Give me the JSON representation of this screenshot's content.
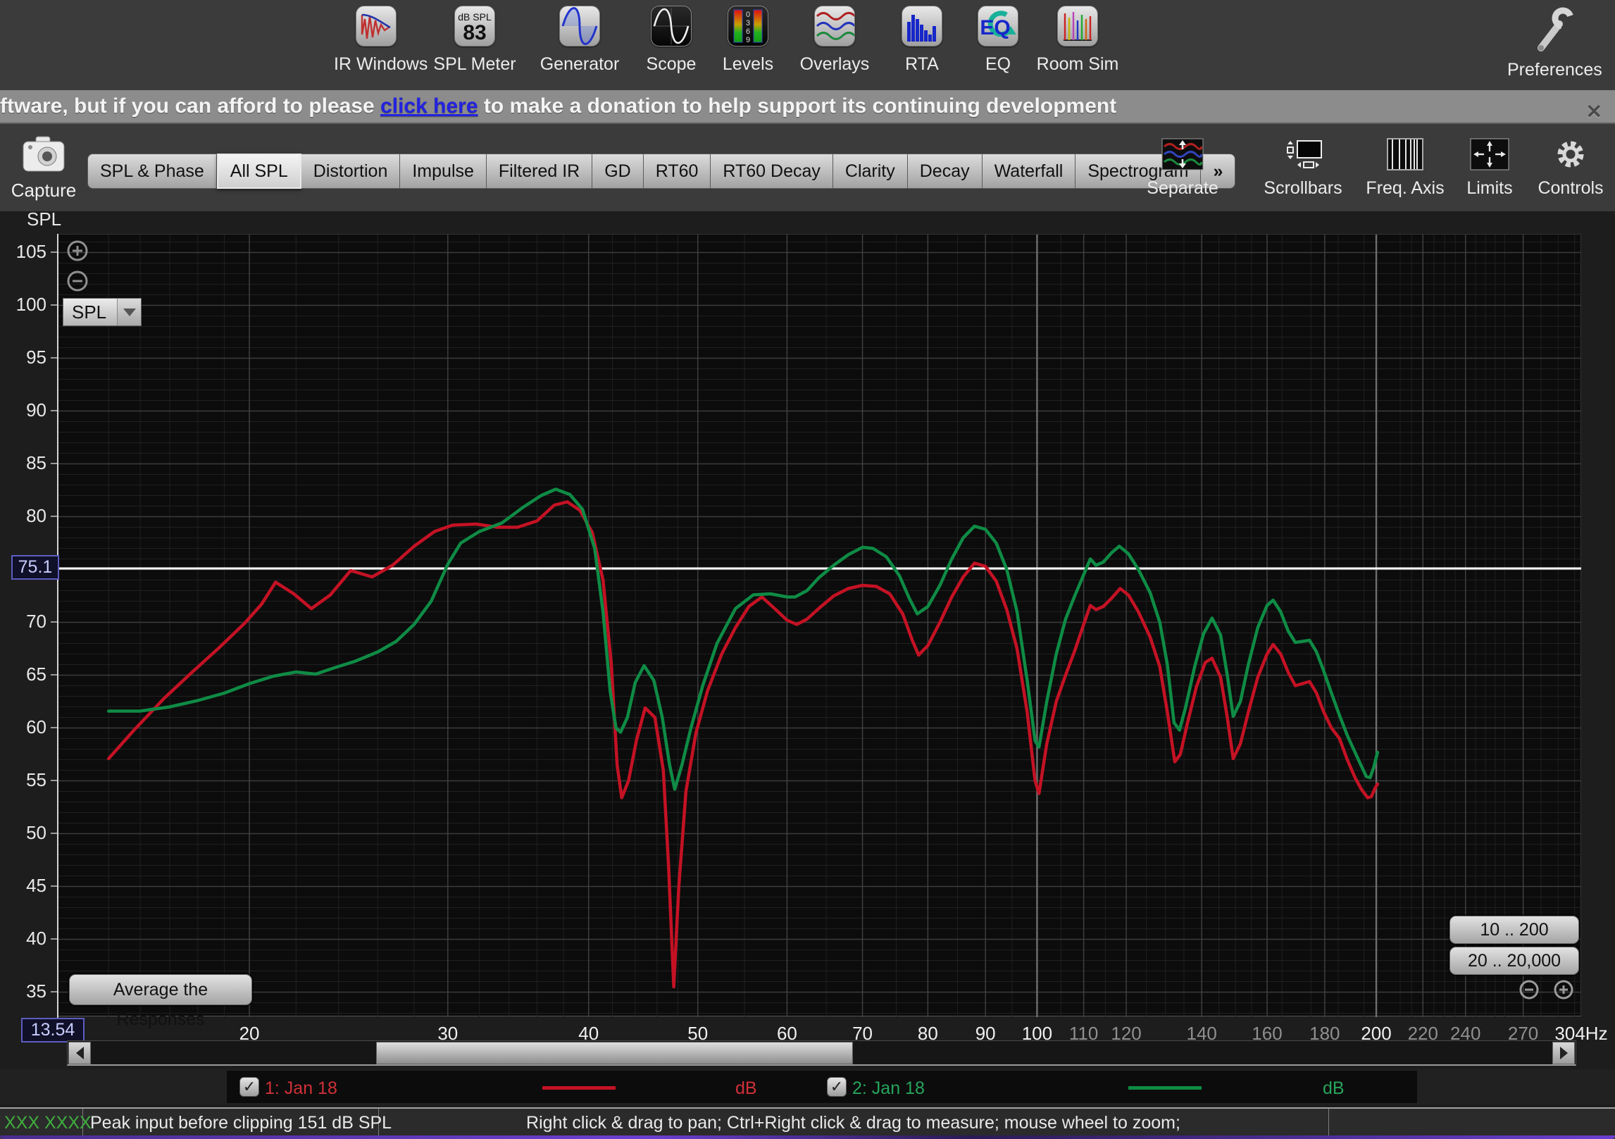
{
  "toolbar": {
    "items": [
      {
        "label": "IR Windows",
        "icon": "ir-windows"
      },
      {
        "label": "SPL Meter",
        "icon": "spl-meter",
        "badge_top": "dB SPL",
        "badge_value": "83"
      },
      {
        "label": "Generator",
        "icon": "generator"
      },
      {
        "label": "Scope",
        "icon": "scope"
      },
      {
        "label": "Levels",
        "icon": "levels",
        "scale_digits": [
          "0",
          "3",
          "6",
          "9"
        ]
      },
      {
        "label": "Overlays",
        "icon": "overlays"
      },
      {
        "label": "RTA",
        "icon": "rta"
      },
      {
        "label": "EQ",
        "icon": "eq",
        "icon_text": "EQ"
      },
      {
        "label": "Room Sim",
        "icon": "room-sim"
      }
    ],
    "preferences_label": "Preferences"
  },
  "banner": {
    "text_before": "ftware, but if you can afford to please ",
    "link_text": "click here",
    "text_after": " to make a donation to help support its continuing development",
    "close_glyph": "✕"
  },
  "nav": {
    "capture_label": "Capture",
    "tabs": [
      "SPL & Phase",
      "All SPL",
      "Distortion",
      "Impulse",
      "Filtered IR",
      "GD",
      "RT60",
      "RT60 Decay",
      "Clarity",
      "Decay",
      "Waterfall",
      "Spectrogram",
      "»"
    ],
    "active_tab": "All SPL",
    "view_buttons": [
      "Separate",
      "Scrollbars",
      "Freq. Axis",
      "Limits",
      "Controls"
    ]
  },
  "graph": {
    "axis_title": "SPL",
    "cursor_level": "75.1",
    "cursor_freq": "13.54",
    "average_button": "Average the Responses",
    "range_button_1": "10 .. 200",
    "range_button_2": "20 .. 20,000",
    "overlay_selector": "SPL"
  },
  "chart_data": {
    "type": "line",
    "title": "All SPL",
    "x_axis": {
      "scale": "log",
      "min": 13.54,
      "max": 304,
      "unit": "Hz",
      "ticks": [
        {
          "f": 20,
          "label": "20",
          "dim": false
        },
        {
          "f": 30,
          "label": "30",
          "dim": false
        },
        {
          "f": 40,
          "label": "40",
          "dim": false
        },
        {
          "f": 50,
          "label": "50",
          "dim": false
        },
        {
          "f": 60,
          "label": "60",
          "dim": false
        },
        {
          "f": 70,
          "label": "70",
          "dim": false
        },
        {
          "f": 80,
          "label": "80",
          "dim": false
        },
        {
          "f": 90,
          "label": "90",
          "dim": false
        },
        {
          "f": 100,
          "label": "100",
          "dim": false
        },
        {
          "f": 110,
          "label": "110",
          "dim": true
        },
        {
          "f": 120,
          "label": "120",
          "dim": true
        },
        {
          "f": 140,
          "label": "140",
          "dim": true
        },
        {
          "f": 160,
          "label": "160",
          "dim": true
        },
        {
          "f": 180,
          "label": "180",
          "dim": true
        },
        {
          "f": 200,
          "label": "200",
          "dim": false
        },
        {
          "f": 220,
          "label": "220",
          "dim": true
        },
        {
          "f": 240,
          "label": "240",
          "dim": true
        },
        {
          "f": 270,
          "label": "270",
          "dim": true
        },
        {
          "f": 304,
          "label": "304Hz",
          "dim": false
        }
      ],
      "minor_ticks": [
        15,
        16,
        17,
        18,
        19,
        22,
        24,
        26,
        28,
        32,
        34,
        36,
        38,
        42,
        44,
        46,
        48,
        55,
        65,
        75,
        85,
        95,
        105,
        115,
        125,
        130,
        135,
        145,
        150,
        155,
        165,
        175,
        185,
        195,
        210,
        215,
        225,
        230,
        235,
        245,
        250,
        255,
        260,
        280,
        290,
        300
      ],
      "bright_gridlines": [
        100,
        200
      ]
    },
    "y_axis": {
      "title": "SPL",
      "unit": "dB",
      "min": 35,
      "max": 105,
      "step": 5,
      "cursor_line": 75.1
    },
    "series": [
      {
        "name": "1: Jan 18",
        "color": "#c41224",
        "unit": "dB",
        "points": [
          [
            15,
            57.1
          ],
          [
            15.8,
            59.8
          ],
          [
            16.8,
            62.8
          ],
          [
            17.8,
            65.3
          ],
          [
            18.8,
            67.6
          ],
          [
            19.8,
            69.9
          ],
          [
            20.5,
            71.7
          ],
          [
            21.1,
            73.8
          ],
          [
            21.9,
            72.7
          ],
          [
            22.7,
            71.3
          ],
          [
            23.6,
            72.6
          ],
          [
            24.6,
            74.9
          ],
          [
            25.7,
            74.3
          ],
          [
            26.8,
            75.4
          ],
          [
            28,
            77.2
          ],
          [
            29.2,
            78.6
          ],
          [
            30.3,
            79.2
          ],
          [
            31.8,
            79.3
          ],
          [
            33.2,
            79
          ],
          [
            34.6,
            79
          ],
          [
            36,
            79.6
          ],
          [
            37.3,
            81.1
          ],
          [
            38.3,
            81.4
          ],
          [
            39.3,
            80.6
          ],
          [
            40.3,
            78.5
          ],
          [
            41.2,
            74
          ],
          [
            41.9,
            66
          ],
          [
            42.4,
            56.5
          ],
          [
            42.8,
            53.4
          ],
          [
            43.4,
            55
          ],
          [
            44.1,
            58.8
          ],
          [
            44.9,
            61.9
          ],
          [
            45.8,
            61
          ],
          [
            46.6,
            56
          ],
          [
            47.1,
            47
          ],
          [
            47.6,
            35.5
          ],
          [
            48.1,
            45
          ],
          [
            48.8,
            54
          ],
          [
            49.8,
            59.5
          ],
          [
            51,
            63.5
          ],
          [
            52.5,
            67
          ],
          [
            54,
            69.5
          ],
          [
            55.5,
            71.5
          ],
          [
            57,
            72.4
          ],
          [
            58.5,
            71.3
          ],
          [
            60,
            70.2
          ],
          [
            61.2,
            69.8
          ],
          [
            62.5,
            70.3
          ],
          [
            64,
            71.3
          ],
          [
            66,
            72.5
          ],
          [
            68,
            73.2
          ],
          [
            70,
            73.5
          ],
          [
            72,
            73.4
          ],
          [
            74,
            72.7
          ],
          [
            76,
            70.8
          ],
          [
            77.5,
            68.3
          ],
          [
            78.5,
            66.9
          ],
          [
            80,
            67.8
          ],
          [
            82,
            70
          ],
          [
            84,
            72.4
          ],
          [
            86,
            74.3
          ],
          [
            88,
            75.6
          ],
          [
            90,
            75.3
          ],
          [
            92,
            73.9
          ],
          [
            94,
            71.2
          ],
          [
            96,
            67.5
          ],
          [
            98,
            61.5
          ],
          [
            99.6,
            55
          ],
          [
            100.4,
            53.8
          ],
          [
            102,
            58.5
          ],
          [
            104,
            62.5
          ],
          [
            106,
            65
          ],
          [
            108,
            67.3
          ],
          [
            110,
            69.8
          ],
          [
            111.5,
            71.6
          ],
          [
            112.8,
            71.2
          ],
          [
            114.5,
            71.5
          ],
          [
            116.5,
            72.3
          ],
          [
            118.5,
            73.2
          ],
          [
            120.5,
            72.6
          ],
          [
            123,
            71
          ],
          [
            126,
            68.6
          ],
          [
            128.5,
            65.8
          ],
          [
            130.5,
            61.5
          ],
          [
            132.5,
            56.8
          ],
          [
            134,
            57.5
          ],
          [
            136,
            60.5
          ],
          [
            138.5,
            63.9
          ],
          [
            141,
            66.2
          ],
          [
            143,
            66.6
          ],
          [
            145.5,
            64.8
          ],
          [
            147.5,
            61
          ],
          [
            149.3,
            57.1
          ],
          [
            151.5,
            58.5
          ],
          [
            154,
            61.5
          ],
          [
            157,
            64.8
          ],
          [
            160,
            67
          ],
          [
            162,
            67.9
          ],
          [
            164.5,
            67
          ],
          [
            167,
            65.3
          ],
          [
            169.5,
            64
          ],
          [
            172,
            64.2
          ],
          [
            174.5,
            64.4
          ],
          [
            177,
            63.3
          ],
          [
            179.5,
            61.6
          ],
          [
            182.5,
            60
          ],
          [
            185.5,
            59
          ],
          [
            188.5,
            57
          ],
          [
            191.5,
            55.3
          ],
          [
            194,
            54.2
          ],
          [
            196.5,
            53.4
          ],
          [
            198,
            53.5
          ],
          [
            199.5,
            54.3
          ],
          [
            200.5,
            54.7
          ]
        ]
      },
      {
        "name": "2: Jan 18",
        "color": "#0f8b45",
        "unit": "dB",
        "points": [
          [
            15,
            61.6
          ],
          [
            16,
            61.6
          ],
          [
            17,
            62
          ],
          [
            18,
            62.6
          ],
          [
            19,
            63.3
          ],
          [
            20,
            64.2
          ],
          [
            21,
            64.9
          ],
          [
            22,
            65.3
          ],
          [
            22.9,
            65.1
          ],
          [
            23.8,
            65.7
          ],
          [
            24.8,
            66.3
          ],
          [
            26,
            67.2
          ],
          [
            27,
            68.2
          ],
          [
            28,
            69.8
          ],
          [
            29,
            72
          ],
          [
            30,
            75.5
          ],
          [
            30.8,
            77.5
          ],
          [
            32,
            78.6
          ],
          [
            33.5,
            79.4
          ],
          [
            35,
            80.9
          ],
          [
            36.3,
            82
          ],
          [
            37.4,
            82.6
          ],
          [
            38.5,
            82.1
          ],
          [
            39.5,
            80.7
          ],
          [
            40.5,
            77
          ],
          [
            41.2,
            71
          ],
          [
            41.8,
            63.5
          ],
          [
            42.3,
            60
          ],
          [
            42.7,
            59.6
          ],
          [
            43.3,
            61
          ],
          [
            44,
            64.3
          ],
          [
            44.8,
            65.9
          ],
          [
            45.7,
            64.5
          ],
          [
            46.5,
            61
          ],
          [
            47.2,
            56.5
          ],
          [
            47.7,
            54.2
          ],
          [
            48.4,
            56.5
          ],
          [
            49.3,
            60
          ],
          [
            50.5,
            64
          ],
          [
            52,
            68
          ],
          [
            54,
            71.3
          ],
          [
            56,
            72.6
          ],
          [
            58,
            72.7
          ],
          [
            60,
            72.4
          ],
          [
            61,
            72.4
          ],
          [
            62.5,
            73
          ],
          [
            64,
            74.2
          ],
          [
            66,
            75.4
          ],
          [
            68,
            76.4
          ],
          [
            70,
            77.1
          ],
          [
            71.5,
            77
          ],
          [
            73.5,
            76.2
          ],
          [
            75.5,
            74.4
          ],
          [
            77,
            72.3
          ],
          [
            78.3,
            70.8
          ],
          [
            80,
            71.5
          ],
          [
            82,
            73.5
          ],
          [
            84,
            76
          ],
          [
            86,
            78
          ],
          [
            88,
            79.1
          ],
          [
            90,
            78.8
          ],
          [
            92,
            77.5
          ],
          [
            94,
            75
          ],
          [
            96,
            71
          ],
          [
            98,
            64.5
          ],
          [
            99.6,
            58.8
          ],
          [
            100.4,
            58.2
          ],
          [
            102,
            62.5
          ],
          [
            104,
            67
          ],
          [
            106,
            70.3
          ],
          [
            108,
            72.5
          ],
          [
            110,
            74.5
          ],
          [
            111.5,
            76
          ],
          [
            112.8,
            75.4
          ],
          [
            114.5,
            75.7
          ],
          [
            116.5,
            76.6
          ],
          [
            118.3,
            77.2
          ],
          [
            120.5,
            76.5
          ],
          [
            123,
            75
          ],
          [
            126,
            72.8
          ],
          [
            128.5,
            70
          ],
          [
            130.5,
            66
          ],
          [
            132.3,
            60.5
          ],
          [
            133.8,
            59.8
          ],
          [
            135.5,
            62
          ],
          [
            138,
            65.8
          ],
          [
            140.5,
            68.9
          ],
          [
            143,
            70.4
          ],
          [
            145.5,
            68.8
          ],
          [
            147.5,
            65
          ],
          [
            149.3,
            61.1
          ],
          [
            151.5,
            62.5
          ],
          [
            154,
            66
          ],
          [
            157,
            69.5
          ],
          [
            160,
            71.6
          ],
          [
            162,
            72.1
          ],
          [
            164.5,
            71
          ],
          [
            167,
            69.2
          ],
          [
            169.5,
            68.1
          ],
          [
            172,
            68.2
          ],
          [
            174.5,
            68.3
          ],
          [
            177,
            67.2
          ],
          [
            179.5,
            65.5
          ],
          [
            182.5,
            63.3
          ],
          [
            185.5,
            61.2
          ],
          [
            188.5,
            59.3
          ],
          [
            191.5,
            57.7
          ],
          [
            194,
            56.4
          ],
          [
            196,
            55.4
          ],
          [
            197.5,
            55.3
          ],
          [
            199,
            56.3
          ],
          [
            200.5,
            57.7
          ]
        ]
      }
    ],
    "cursor_line_color": "#ffffff",
    "grid": true,
    "legend_position": "bottom"
  },
  "legend": {
    "entries": [
      {
        "checked": "✓",
        "label": "1: Jan 18",
        "unit": "dB",
        "color": "#d03038"
      },
      {
        "checked": "✓",
        "label": "2: Jan 18",
        "unit": "dB",
        "color": "#27a45c"
      }
    ]
  },
  "status_bar": {
    "cell_1": "XXX XXXX",
    "cell_2": "Peak input before clipping 151 dB SPL",
    "cell_3": "Right click & drag to pan; Ctrl+Right click & drag to measure; mouse wheel to zoom;"
  }
}
